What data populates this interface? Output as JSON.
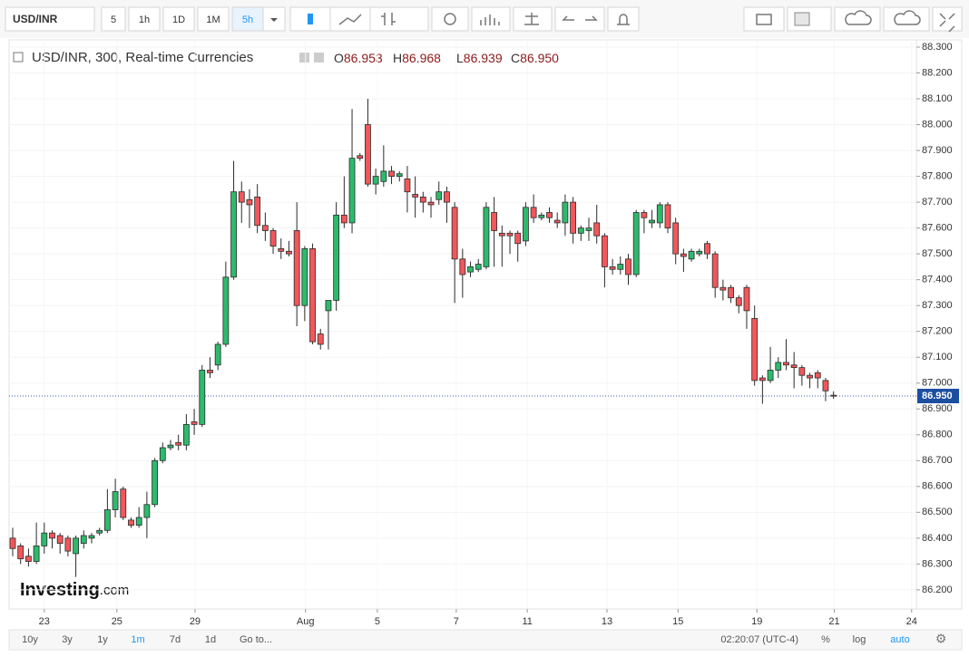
{
  "toolbar": {
    "symbol": "USD/INR",
    "intervals": [
      "5",
      "1h",
      "1D",
      "1M",
      "5h"
    ],
    "active_interval": 4
  },
  "chart_data": {
    "type": "candlestick",
    "title": "USD/INR, 300, Real-time Currencies",
    "readout": [
      {
        "key": "O",
        "value": "86.953"
      },
      {
        "key": "H",
        "value": "86.968"
      },
      {
        "key": "L",
        "value": "86.939"
      },
      {
        "key": "C",
        "value": "86.950"
      }
    ],
    "open": [
      86.4,
      86.37,
      86.33,
      86.31,
      86.37,
      86.42,
      86.41,
      86.4,
      86.34,
      86.38,
      86.4,
      86.42,
      86.43,
      86.51,
      86.59,
      86.47,
      86.45,
      86.48,
      86.53,
      86.7,
      86.75,
      86.77,
      86.76,
      86.85,
      86.84,
      87.05,
      87.07,
      87.15,
      87.41,
      87.74,
      87.71,
      87.72,
      87.61,
      87.59,
      87.52,
      87.51,
      87.59,
      87.3,
      87.52,
      87.19,
      87.28,
      87.32,
      87.65,
      87.62,
      87.88,
      88.0,
      87.77,
      87.78,
      87.82,
      87.8,
      87.79,
      87.73,
      87.72,
      87.7,
      87.71,
      87.74,
      87.68,
      87.48,
      87.43,
      87.44,
      87.45,
      87.66,
      87.58,
      87.58,
      87.58,
      87.55,
      87.68,
      87.64,
      87.66,
      87.63,
      87.62,
      87.7,
      87.58,
      87.59,
      87.62,
      87.57,
      87.45,
      87.44,
      87.48,
      87.42,
      87.66,
      87.62,
      87.62,
      87.69,
      87.62,
      87.5,
      87.48,
      87.5,
      87.54,
      87.5,
      87.37,
      87.37,
      87.33,
      87.37,
      87.25,
      87.02,
      87.01,
      87.05,
      87.08,
      87.07,
      87.06,
      87.03,
      87.04,
      87.01,
      86.953
    ],
    "high": [
      86.44,
      86.38,
      86.36,
      86.46,
      86.46,
      86.43,
      86.42,
      86.41,
      86.41,
      86.43,
      86.42,
      86.44,
      86.59,
      86.63,
      86.6,
      86.48,
      86.52,
      86.58,
      86.71,
      86.77,
      86.78,
      86.8,
      86.88,
      86.9,
      87.07,
      87.1,
      87.16,
      87.47,
      87.86,
      87.78,
      87.75,
      87.77,
      87.66,
      87.6,
      87.56,
      87.55,
      87.7,
      87.53,
      87.54,
      87.21,
      87.32,
      87.7,
      87.8,
      88.06,
      87.89,
      88.1,
      87.83,
      87.92,
      87.84,
      87.82,
      87.84,
      87.8,
      87.74,
      87.72,
      87.78,
      87.76,
      87.7,
      87.52,
      87.47,
      87.48,
      87.7,
      87.72,
      87.61,
      87.59,
      87.59,
      87.7,
      87.73,
      87.66,
      87.68,
      87.66,
      87.73,
      87.72,
      87.61,
      87.64,
      87.69,
      87.58,
      87.48,
      87.49,
      87.5,
      87.67,
      87.67,
      87.67,
      87.7,
      87.7,
      87.64,
      87.52,
      87.52,
      87.52,
      87.55,
      87.51,
      87.4,
      87.38,
      87.34,
      87.38,
      87.3,
      87.03,
      87.14,
      87.1,
      87.17,
      87.12,
      87.07,
      87.04,
      87.05,
      87.02,
      86.968
    ],
    "low": [
      86.33,
      86.3,
      86.29,
      86.3,
      86.34,
      86.36,
      86.34,
      86.33,
      86.25,
      86.36,
      86.38,
      86.41,
      86.42,
      86.48,
      86.47,
      86.44,
      86.44,
      86.4,
      86.52,
      86.69,
      86.74,
      86.74,
      86.74,
      86.8,
      86.83,
      87.02,
      87.05,
      87.14,
      87.4,
      87.62,
      87.6,
      87.58,
      87.55,
      87.5,
      87.48,
      87.49,
      87.22,
      87.24,
      87.15,
      87.13,
      87.13,
      87.28,
      87.6,
      87.58,
      87.86,
      87.76,
      87.73,
      87.76,
      87.77,
      87.78,
      87.66,
      87.64,
      87.66,
      87.64,
      87.69,
      87.62,
      87.31,
      87.33,
      87.41,
      87.43,
      87.44,
      87.45,
      87.45,
      87.5,
      87.47,
      87.53,
      87.62,
      87.63,
      87.62,
      87.6,
      87.57,
      87.54,
      87.55,
      87.55,
      87.54,
      87.37,
      87.42,
      87.42,
      87.38,
      87.41,
      87.58,
      87.6,
      87.6,
      87.58,
      87.46,
      87.43,
      87.47,
      87.49,
      87.48,
      87.33,
      87.32,
      87.31,
      87.27,
      87.21,
      86.99,
      86.92,
      87.0,
      87.02,
      87.05,
      86.98,
      86.99,
      86.98,
      86.98,
      86.93,
      86.939
    ],
    "close": [
      86.36,
      86.32,
      86.31,
      86.37,
      86.42,
      86.4,
      86.38,
      86.35,
      86.4,
      86.41,
      86.41,
      86.43,
      86.51,
      86.58,
      86.48,
      86.45,
      86.48,
      86.53,
      86.7,
      86.75,
      86.76,
      86.76,
      86.84,
      86.84,
      87.05,
      87.04,
      87.15,
      87.41,
      87.74,
      87.7,
      87.69,
      87.61,
      87.59,
      87.53,
      87.51,
      87.5,
      87.3,
      87.52,
      87.16,
      87.15,
      87.32,
      87.65,
      87.62,
      87.87,
      87.87,
      87.77,
      87.8,
      87.82,
      87.8,
      87.81,
      87.74,
      87.72,
      87.7,
      87.69,
      87.74,
      87.7,
      87.48,
      87.42,
      87.45,
      87.46,
      87.68,
      87.59,
      87.57,
      87.57,
      87.54,
      87.68,
      87.64,
      87.65,
      87.64,
      87.62,
      87.7,
      87.58,
      87.6,
      87.6,
      87.57,
      87.45,
      87.44,
      87.46,
      87.42,
      87.66,
      87.64,
      87.63,
      87.69,
      87.6,
      87.5,
      87.49,
      87.51,
      87.51,
      87.5,
      87.37,
      87.36,
      87.33,
      87.3,
      87.28,
      87.01,
      87.01,
      87.05,
      87.08,
      87.07,
      87.06,
      87.03,
      87.02,
      87.02,
      86.97,
      86.95
    ],
    "up_color": "#2dba6c",
    "down_color": "#f2575a",
    "border_color": "#2b2b2b",
    "xlim": [
      -0.46,
      114.5
    ],
    "xticks": [
      {
        "value": 4.0,
        "label": "23"
      },
      {
        "value": 13.2,
        "label": "25"
      },
      {
        "value": 23.1,
        "label": "29"
      },
      {
        "value": 37.1,
        "label": "Aug"
      },
      {
        "value": 46.2,
        "label": "5"
      },
      {
        "value": 56.2,
        "label": "7"
      },
      {
        "value": 65.2,
        "label": "11"
      },
      {
        "value": 75.3,
        "label": "13"
      },
      {
        "value": 84.3,
        "label": "15"
      },
      {
        "value": 94.3,
        "label": "19"
      },
      {
        "value": 104.1,
        "label": "21"
      },
      {
        "value": 113.9,
        "label": "24"
      }
    ],
    "ylim": [
      86.126,
      88.328
    ],
    "yticks": [
      {
        "value": 86.2,
        "label": "86.200"
      },
      {
        "value": 86.3,
        "label": "86.300"
      },
      {
        "value": 86.4,
        "label": "86.400"
      },
      {
        "value": 86.5,
        "label": "86.500"
      },
      {
        "value": 86.6,
        "label": "86.600"
      },
      {
        "value": 86.7,
        "label": "86.700"
      },
      {
        "value": 86.8,
        "label": "86.800"
      },
      {
        "value": 86.9,
        "label": "86.900"
      },
      {
        "value": 87.0,
        "label": "87.000"
      },
      {
        "value": 87.1,
        "label": "87.100"
      },
      {
        "value": 87.2,
        "label": "87.200"
      },
      {
        "value": 87.3,
        "label": "87.300"
      },
      {
        "value": 87.4,
        "label": "87.400"
      },
      {
        "value": 87.5,
        "label": "87.500"
      },
      {
        "value": 87.6,
        "label": "87.600"
      },
      {
        "value": 87.7,
        "label": "87.700"
      },
      {
        "value": 87.8,
        "label": "87.800"
      },
      {
        "value": 87.9,
        "label": "87.900"
      },
      {
        "value": 88.0,
        "label": "88.000"
      },
      {
        "value": 88.1,
        "label": "88.100"
      },
      {
        "value": 88.2,
        "label": "88.200"
      },
      {
        "value": 88.3,
        "label": "88.300"
      }
    ],
    "last_price": {
      "value": 86.95,
      "label": "86.950"
    },
    "grid": true
  },
  "logo": {
    "name": "Investing",
    "suffix": ".com"
  },
  "footer": {
    "ranges": [
      "10y",
      "3y",
      "1y",
      "1m",
      "7d",
      "1d"
    ],
    "active_range": 3,
    "goto": "Go to...",
    "time": "02:20:07 (UTC-4)",
    "options": [
      "%",
      "log",
      "auto"
    ]
  }
}
